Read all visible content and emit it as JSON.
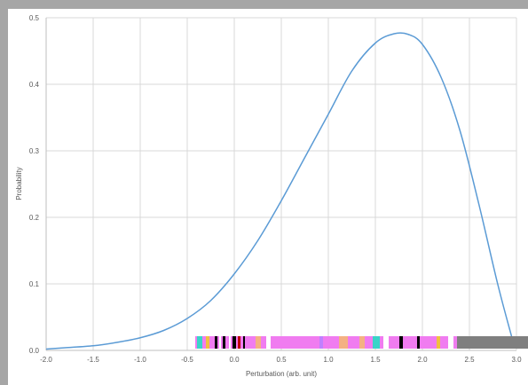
{
  "chart_data": {
    "type": "line",
    "title": "",
    "xlabel": "Perturbation (arb. unit)",
    "ylabel": "Probability",
    "xlim": [
      -2.0,
      3.0
    ],
    "ylim": [
      0.0,
      0.5
    ],
    "x_ticks": [
      "-2.0",
      "-1.5",
      "-1.0",
      "-0.5",
      "0.0",
      "0.5",
      "1.0",
      "1.5",
      "2.0",
      "2.5",
      "3.0"
    ],
    "y_ticks": [
      "0.0",
      "0.1",
      "0.2",
      "0.3",
      "0.4",
      "0.5"
    ],
    "grid": true,
    "legend": "none",
    "series": [
      {
        "color": "#5b9bd5",
        "x": [
          -2.0,
          -1.8,
          -1.5,
          -1.25,
          -1.0,
          -0.75,
          -0.5,
          -0.25,
          0.0,
          0.25,
          0.5,
          0.75,
          1.0,
          1.25,
          1.5,
          1.7,
          1.85,
          2.0,
          2.2,
          2.4,
          2.6,
          2.8,
          2.95
        ],
        "y": [
          0.002,
          0.004,
          0.007,
          0.012,
          0.019,
          0.03,
          0.048,
          0.075,
          0.115,
          0.165,
          0.225,
          0.29,
          0.355,
          0.42,
          0.462,
          0.476,
          0.475,
          0.46,
          0.41,
          0.33,
          0.22,
          0.1,
          0.02
        ]
      }
    ]
  },
  "overlay_colors": {
    "artifact_magenta": "#f07cf0",
    "artifact_gray": "#7f7f7f"
  }
}
